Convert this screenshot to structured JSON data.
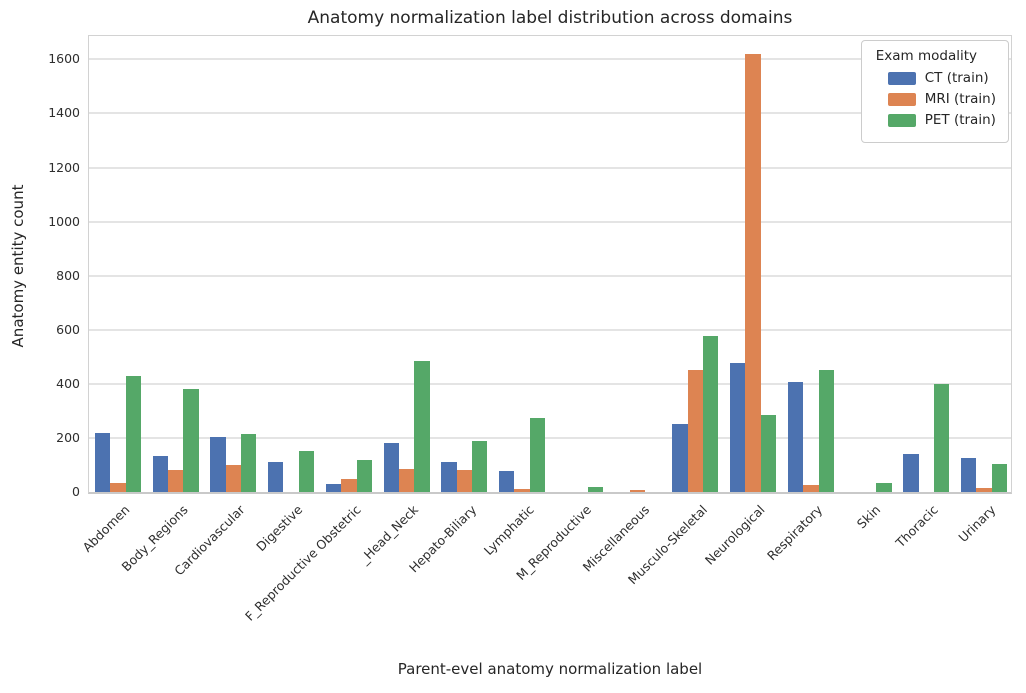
{
  "chart_data": {
    "type": "bar",
    "title": "Anatomy normalization label distribution across domains",
    "xlabel": "Parent-evel anatomy normalization label",
    "ylabel": "Anatomy entity count",
    "ylim": [
      0,
      1690
    ],
    "yticks": [
      0,
      200,
      400,
      600,
      800,
      1000,
      1200,
      1400,
      1600
    ],
    "grid": true,
    "legend": {
      "title": "Exam modality",
      "position": "upper right"
    },
    "categories": [
      "Abdomen",
      "Body_Regions",
      "Cardiovascular",
      "Digestive",
      "F_Reproductive Obstetric",
      "_Head_Neck",
      "Hepato-Biliary",
      "Lymphatic",
      "M_Reproductive",
      "Miscellaneous",
      "Musculo-Skeletal",
      "Neurological",
      "Respiratory",
      "Skin",
      "Thoracic",
      "Urinary"
    ],
    "series": [
      {
        "name": "CT (train)",
        "color": "#4c72b0",
        "values": [
          218,
          135,
          205,
          112,
          28,
          182,
          112,
          78,
          0,
          0,
          252,
          478,
          408,
          0,
          140,
          125
        ]
      },
      {
        "name": "MRI (train)",
        "color": "#dd8452",
        "values": [
          35,
          80,
          100,
          0,
          48,
          85,
          80,
          10,
          0,
          8,
          452,
          1620,
          25,
          0,
          0,
          15
        ]
      },
      {
        "name": "PET (train)",
        "color": "#55a868",
        "values": [
          430,
          380,
          215,
          152,
          118,
          485,
          188,
          275,
          20,
          0,
          578,
          285,
          452,
          32,
          398,
          102
        ]
      }
    ]
  }
}
